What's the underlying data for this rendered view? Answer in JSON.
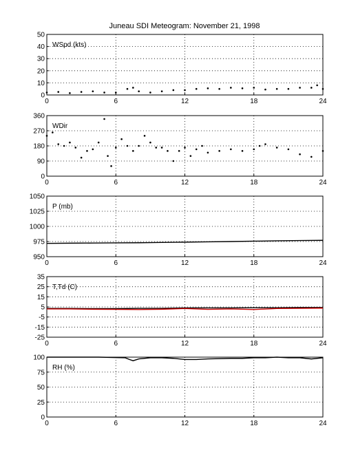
{
  "title": "Juneau SDI Meteogram:  November 21, 1998",
  "chart_data": [
    {
      "type": "scatter",
      "label": "WSpd (kts)",
      "ylim": [
        0,
        50
      ],
      "yticks": [
        0,
        10,
        20,
        30,
        40,
        50
      ],
      "xlim": [
        0,
        24
      ],
      "xticks": [
        0,
        6,
        12,
        18,
        24
      ],
      "grid": true,
      "x": [
        0,
        1,
        2,
        3,
        4,
        5,
        6,
        7,
        7.5,
        8,
        9,
        10,
        11,
        12,
        13,
        14,
        15,
        16,
        17,
        18,
        19,
        20,
        21,
        22,
        23,
        23.5,
        24
      ],
      "values": [
        2,
        2.5,
        1.5,
        2.5,
        3,
        2,
        2,
        5,
        6,
        3,
        2,
        3,
        4,
        4,
        5,
        5.5,
        5,
        6,
        5.5,
        6,
        4.5,
        5,
        5,
        6,
        6,
        8,
        5
      ]
    },
    {
      "type": "scatter",
      "label": "WDir",
      "ylim": [
        0,
        360
      ],
      "yticks": [
        0,
        90,
        180,
        270,
        360
      ],
      "xlim": [
        0,
        24
      ],
      "xticks": [
        0,
        6,
        12,
        18,
        24
      ],
      "grid": true,
      "x": [
        0,
        0.5,
        1,
        1.5,
        2,
        2.5,
        3,
        3.5,
        4,
        4.5,
        5,
        5.3,
        5.6,
        6,
        6.5,
        7,
        7.5,
        8,
        8.5,
        9,
        9.5,
        10,
        10.5,
        11,
        11.5,
        12,
        12.5,
        13,
        13.5,
        14,
        15,
        16,
        17,
        18,
        18.5,
        19,
        20,
        21,
        22,
        23,
        24
      ],
      "values": [
        240,
        260,
        190,
        180,
        200,
        170,
        110,
        150,
        160,
        200,
        340,
        120,
        60,
        170,
        220,
        180,
        150,
        180,
        240,
        200,
        170,
        170,
        150,
        90,
        150,
        170,
        120,
        160,
        180,
        140,
        150,
        160,
        150,
        160,
        180,
        190,
        170,
        160,
        130,
        115,
        150
      ]
    },
    {
      "type": "line",
      "label": "P (mb)",
      "ylim": [
        950,
        1050
      ],
      "yticks": [
        950,
        975,
        1000,
        1025,
        1050
      ],
      "xlim": [
        0,
        24
      ],
      "xticks": [
        0,
        6,
        12,
        18,
        24
      ],
      "grid": true,
      "x": [
        0,
        2,
        4,
        6,
        8,
        10,
        12,
        14,
        16,
        18,
        20,
        22,
        24
      ],
      "values": [
        972,
        972.3,
        972.5,
        972.8,
        973,
        973.5,
        974,
        974.5,
        975,
        975.6,
        976.2,
        976.6,
        977
      ]
    },
    {
      "type": "line",
      "label": "T,Td (C)",
      "ylim": [
        -25,
        35
      ],
      "yticks": [
        -25,
        -15,
        -5,
        5,
        15,
        25,
        35
      ],
      "xlim": [
        0,
        24
      ],
      "xticks": [
        0,
        6,
        12,
        18,
        24
      ],
      "grid": true,
      "x": [
        0,
        2,
        4,
        6,
        8,
        10,
        12,
        14,
        16,
        18,
        20,
        22,
        24
      ],
      "series": [
        {
          "values": [
            3.5,
            3.5,
            3.3,
            3.3,
            3.6,
            3.6,
            4,
            4,
            4,
            4.2,
            4.2,
            4.4,
            4.4
          ],
          "color": "#000000"
        },
        {
          "values": [
            3,
            3,
            2.7,
            2.6,
            2.4,
            2.7,
            3.4,
            2.6,
            3,
            2.4,
            3.4,
            3.6,
            3.8
          ],
          "color": "#cc0000"
        }
      ]
    },
    {
      "type": "line",
      "label": "RH (%)",
      "ylim": [
        0,
        100
      ],
      "yticks": [
        0,
        25,
        50,
        75,
        100
      ],
      "xlim": [
        0,
        24
      ],
      "xticks": [
        0,
        6,
        12,
        18,
        24
      ],
      "grid": true,
      "x": [
        0,
        4.5,
        6.8,
        7.2,
        7.5,
        8,
        9,
        10,
        11,
        12,
        13,
        14,
        16,
        17,
        18,
        19,
        20,
        21,
        22,
        23,
        24
      ],
      "values": [
        100,
        100,
        99,
        96,
        94,
        97,
        99,
        99,
        98,
        96,
        96,
        97,
        98,
        98,
        99,
        99,
        100,
        99,
        99,
        97,
        99
      ]
    }
  ]
}
